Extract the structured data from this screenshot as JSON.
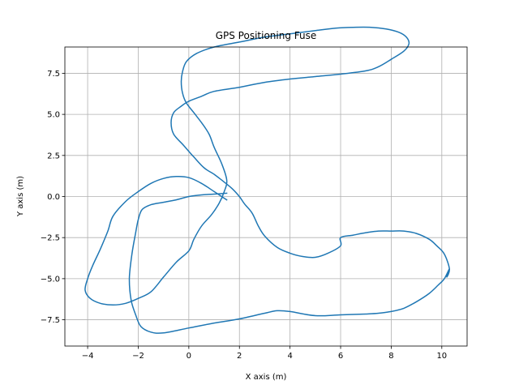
{
  "chart_data": {
    "type": "line",
    "title": "GPS Positioning Fuse",
    "xlabel": "X axis (m)",
    "ylabel": "Y axis (m)",
    "xlim": [
      -4.9,
      11.0
    ],
    "ylim": [
      -9.1,
      9.1
    ],
    "xticks": [
      -4,
      -2,
      0,
      2,
      4,
      6,
      8,
      10
    ],
    "yticks": [
      -7.5,
      -5.0,
      -2.5,
      0.0,
      2.5,
      5.0,
      7.5
    ],
    "xtick_labels": [
      "−4",
      "−2",
      "0",
      "2",
      "4",
      "6",
      "8",
      "10"
    ],
    "ytick_labels": [
      "−7.5",
      "−5.0",
      "−2.5",
      "0.0",
      "2.5",
      "5.0",
      "7.5"
    ],
    "grid": true,
    "color": "#1f77b4",
    "series": [
      {
        "x": [
          1.5,
          1.0,
          0.5,
          0.0,
          -0.5,
          -1.0,
          -1.5,
          -1.85,
          -2.0,
          -2.1,
          -2.25,
          -2.35,
          -2.28,
          -2.1,
          -1.9,
          -1.5,
          -1.0,
          0.0,
          1.0,
          2.0,
          3.0,
          3.5,
          4.0,
          5.0,
          6.0,
          7.0,
          7.5,
          8.0,
          8.5,
          9.0,
          9.5,
          9.85,
          10.1,
          10.3,
          10.2,
          10.3,
          10.1,
          9.8,
          9.5,
          9.0,
          8.5,
          8.0,
          7.5,
          7.0,
          6.5,
          6.0,
          6.0,
          5.5,
          5.0,
          4.5,
          4.0,
          3.5,
          3.0,
          2.75,
          2.5,
          2.2,
          2.0,
          1.7,
          1.3,
          1.0,
          0.6,
          0.2,
          -0.2,
          -0.6,
          -0.7,
          -0.6,
          -0.3,
          0.0,
          0.5,
          1.0,
          2.0,
          3.0,
          4.0,
          5.0,
          6.0,
          7.0,
          7.5,
          8.0,
          8.5,
          8.7,
          8.6,
          8.3,
          7.8,
          7.2,
          6.5,
          5.8,
          5.0,
          4.0,
          3.0,
          2.0,
          1.0,
          0.3,
          -0.1,
          -0.25,
          -0.3,
          -0.25,
          -0.1,
          0.2,
          0.5,
          0.8,
          1.0,
          1.3,
          1.5,
          1.4,
          1.2,
          0.9,
          0.5,
          0.2,
          0.0,
          -0.5,
          -1.0,
          -1.5,
          -2.0,
          -2.5,
          -3.0,
          -3.5,
          -3.9,
          -4.1,
          -4.0,
          -3.8,
          -3.5,
          -3.2,
          -3.0,
          -2.5,
          -2.0,
          -1.5,
          -1.0,
          -0.5,
          0.0,
          0.5,
          1.0,
          1.5
        ],
        "y": [
          0.2,
          0.15,
          0.1,
          0.0,
          -0.2,
          -0.35,
          -0.5,
          -0.8,
          -1.4,
          -2.2,
          -3.5,
          -5.0,
          -6.3,
          -7.2,
          -7.9,
          -8.25,
          -8.3,
          -8.0,
          -7.7,
          -7.45,
          -7.1,
          -6.95,
          -7.0,
          -7.25,
          -7.2,
          -7.15,
          -7.1,
          -7.0,
          -6.8,
          -6.4,
          -5.9,
          -5.4,
          -5.0,
          -4.4,
          -4.9,
          -4.4,
          -3.5,
          -3.0,
          -2.6,
          -2.25,
          -2.1,
          -2.1,
          -2.1,
          -2.2,
          -2.35,
          -2.5,
          -3.0,
          -3.45,
          -3.7,
          -3.65,
          -3.45,
          -3.1,
          -2.4,
          -1.8,
          -1.0,
          -0.45,
          0.0,
          0.5,
          1.0,
          1.35,
          1.75,
          2.4,
          3.1,
          3.8,
          4.5,
          5.1,
          5.5,
          5.8,
          6.1,
          6.4,
          6.65,
          6.95,
          7.15,
          7.3,
          7.45,
          7.65,
          7.9,
          8.35,
          8.85,
          9.3,
          9.7,
          10.0,
          10.2,
          10.3,
          10.3,
          10.25,
          10.1,
          9.9,
          9.7,
          9.4,
          9.1,
          8.7,
          8.2,
          7.6,
          7.0,
          6.3,
          5.7,
          5.1,
          4.5,
          3.8,
          3.0,
          2.0,
          1.0,
          0.3,
          -0.4,
          -1.1,
          -1.8,
          -2.6,
          -3.3,
          -4.0,
          -4.9,
          -5.8,
          -6.2,
          -6.5,
          -6.6,
          -6.5,
          -6.2,
          -5.7,
          -5.0,
          -4.2,
          -3.2,
          -2.1,
          -1.2,
          -0.3,
          0.3,
          0.8,
          1.1,
          1.22,
          1.15,
          0.8,
          0.3,
          -0.2
        ]
      }
    ]
  }
}
